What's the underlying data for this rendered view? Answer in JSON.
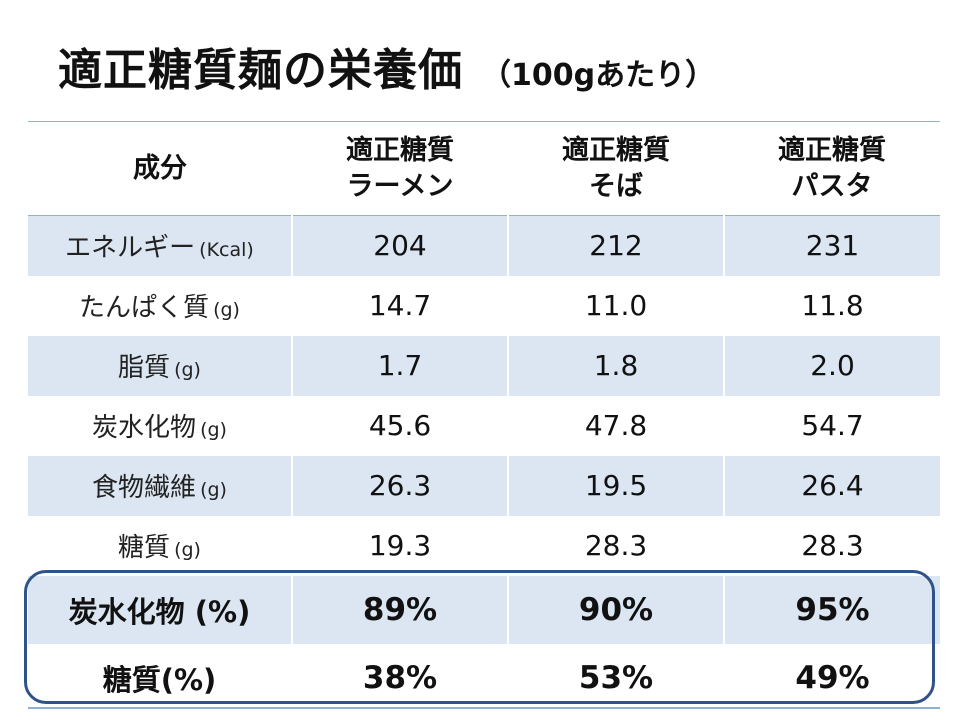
{
  "title": {
    "main": "適正糖質麺の栄養価",
    "sub": "（100gあたり）"
  },
  "table": {
    "header": {
      "component": "成分",
      "col1_line1": "適正糖質",
      "col1_line2": "ラーメン",
      "col2_line1": "適正糖質",
      "col2_line2": "そば",
      "col3_line1": "適正糖質",
      "col3_line2": "パスタ"
    },
    "rows": [
      {
        "label": "エネルギー",
        "unit": "(Kcal)",
        "values": [
          "204",
          "212",
          "231"
        ]
      },
      {
        "label": "たんぱく質",
        "unit": "(g)",
        "values": [
          "14.7",
          "11.0",
          "11.8"
        ]
      },
      {
        "label": "脂質",
        "unit": "(g)",
        "values": [
          "1.7",
          "1.8",
          "2.0"
        ]
      },
      {
        "label": "炭水化物",
        "unit": "(g)",
        "values": [
          "45.6",
          "47.8",
          "54.7"
        ]
      },
      {
        "label": "食物繊維",
        "unit": "(g)",
        "values": [
          "26.3",
          "19.5",
          "26.4"
        ]
      },
      {
        "label": "糖質",
        "unit": "(g)",
        "values": [
          "19.3",
          "28.3",
          "28.3"
        ]
      }
    ],
    "highlight_rows": [
      {
        "label": "炭水化物 (%)",
        "values": [
          "89%",
          "90%",
          "95%"
        ]
      },
      {
        "label": "糖質(%)",
        "values": [
          "38%",
          "53%",
          "49%"
        ]
      }
    ]
  },
  "colors": {
    "row_shade": "#dbe6f2",
    "rule": "#8fb2d3",
    "highlight_border": "#2f5288"
  }
}
